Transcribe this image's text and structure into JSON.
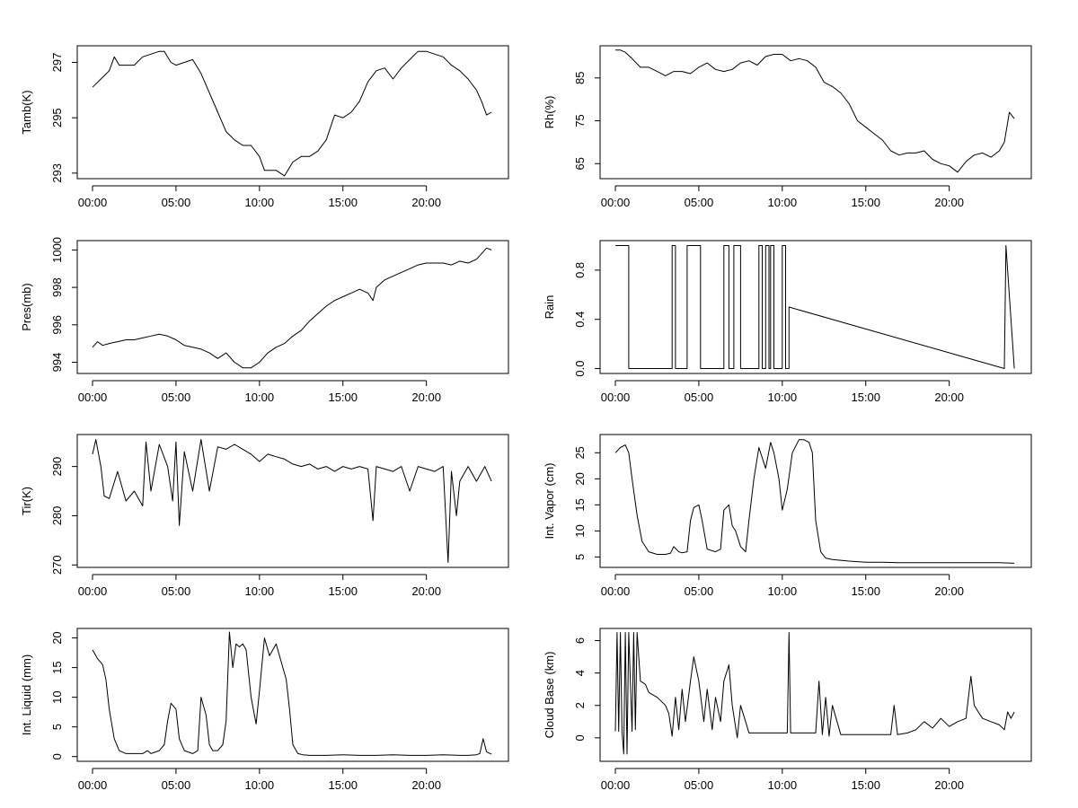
{
  "figure": {
    "x_tick_labels": [
      "00:00",
      "05:00",
      "10:00",
      "15:00",
      "20:00"
    ]
  },
  "chart_data": [
    {
      "id": "tamb",
      "type": "line",
      "ylabel": "Tamb(K)",
      "xlim": [
        0,
        24
      ],
      "ylim": [
        292.8,
        297.6
      ],
      "yticks": [
        293,
        295,
        297
      ],
      "x": [
        0.0,
        0.5,
        1.0,
        1.3,
        1.6,
        2.0,
        2.5,
        3.0,
        3.5,
        4.0,
        4.3,
        4.7,
        5.0,
        5.5,
        6.0,
        6.5,
        7.0,
        7.5,
        8.0,
        8.5,
        9.0,
        9.5,
        10.0,
        10.3,
        10.6,
        11.0,
        11.5,
        12.0,
        12.5,
        13.0,
        13.5,
        14.0,
        14.5,
        15.0,
        15.5,
        16.0,
        16.5,
        17.0,
        17.5,
        18.0,
        18.5,
        19.0,
        19.5,
        20.0,
        20.5,
        21.0,
        21.5,
        22.0,
        22.5,
        23.0,
        23.3,
        23.6,
        23.9
      ],
      "y": [
        296.1,
        296.4,
        296.7,
        297.2,
        296.9,
        296.9,
        296.9,
        297.2,
        297.3,
        297.4,
        297.4,
        297.0,
        296.9,
        297.0,
        297.1,
        296.6,
        295.9,
        295.2,
        294.5,
        294.2,
        294.0,
        294.0,
        293.6,
        293.1,
        293.1,
        293.1,
        292.9,
        293.4,
        293.6,
        293.6,
        293.8,
        294.2,
        295.1,
        295.0,
        295.2,
        295.6,
        296.3,
        296.7,
        296.8,
        296.4,
        296.8,
        297.1,
        297.4,
        297.4,
        297.3,
        297.2,
        296.9,
        296.7,
        296.4,
        296.0,
        295.6,
        295.1,
        295.2
      ]
    },
    {
      "id": "rh",
      "type": "line",
      "ylabel": "Rh(%)",
      "xlim": [
        0,
        24
      ],
      "ylim": [
        61.5,
        92.5
      ],
      "yticks": [
        65,
        75,
        85
      ],
      "x": [
        0.0,
        0.3,
        0.6,
        1.0,
        1.5,
        2.0,
        2.5,
        3.0,
        3.5,
        4.0,
        4.5,
        5.0,
        5.5,
        6.0,
        6.5,
        7.0,
        7.5,
        8.0,
        8.5,
        9.0,
        9.5,
        10.0,
        10.5,
        11.0,
        11.5,
        12.0,
        12.5,
        13.0,
        13.5,
        14.0,
        14.5,
        15.0,
        15.5,
        16.0,
        16.5,
        17.0,
        17.5,
        18.0,
        18.5,
        19.0,
        19.5,
        20.0,
        20.5,
        21.0,
        21.5,
        22.0,
        22.5,
        23.0,
        23.3,
        23.6,
        23.9
      ],
      "y": [
        91.5,
        91.5,
        91.0,
        89.5,
        87.5,
        87.5,
        86.5,
        85.5,
        86.5,
        86.5,
        86.0,
        87.5,
        88.5,
        87.0,
        86.5,
        87.0,
        88.5,
        89.0,
        88.0,
        90.0,
        90.5,
        90.5,
        89.0,
        89.5,
        89.0,
        87.5,
        84.0,
        83.0,
        81.5,
        79.0,
        75.0,
        73.5,
        72.0,
        70.5,
        68.0,
        67.0,
        67.5,
        67.5,
        68.0,
        66.0,
        65.0,
        64.5,
        63.0,
        65.5,
        67.0,
        67.5,
        66.5,
        68.0,
        70.0,
        77.0,
        75.5
      ]
    },
    {
      "id": "pres",
      "type": "line",
      "ylabel": "Pres(mb)",
      "xlim": [
        0,
        24
      ],
      "ylim": [
        993.4,
        1000.5
      ],
      "yticks": [
        994,
        996,
        998,
        1000
      ],
      "x": [
        0.0,
        0.3,
        0.6,
        1.0,
        1.5,
        2.0,
        2.5,
        3.0,
        3.5,
        4.0,
        4.5,
        5.0,
        5.5,
        6.0,
        6.5,
        7.0,
        7.5,
        8.0,
        8.5,
        9.0,
        9.5,
        10.0,
        10.5,
        11.0,
        11.5,
        12.0,
        12.5,
        13.0,
        13.5,
        14.0,
        14.5,
        15.0,
        15.5,
        16.0,
        16.5,
        16.8,
        17.0,
        17.5,
        18.0,
        18.5,
        19.0,
        19.5,
        20.0,
        20.5,
        21.0,
        21.5,
        22.0,
        22.5,
        23.0,
        23.3,
        23.6,
        23.9
      ],
      "y": [
        994.8,
        995.1,
        994.9,
        995.0,
        995.1,
        995.2,
        995.2,
        995.3,
        995.4,
        995.5,
        995.4,
        995.2,
        994.9,
        994.8,
        994.7,
        994.5,
        994.2,
        994.5,
        994.0,
        993.7,
        993.7,
        994.0,
        994.5,
        994.8,
        995.0,
        995.4,
        995.7,
        996.2,
        996.6,
        997.0,
        997.3,
        997.5,
        997.7,
        997.9,
        997.7,
        997.3,
        998.0,
        998.4,
        998.6,
        998.8,
        999.0,
        999.2,
        999.3,
        999.3,
        999.3,
        999.2,
        999.4,
        999.3,
        999.5,
        999.8,
        1000.1,
        1000.0
      ]
    },
    {
      "id": "rain",
      "type": "line",
      "ylabel": "Rain",
      "xlim": [
        0,
        24
      ],
      "ylim": [
        -0.04,
        1.04
      ],
      "yticks": [
        0.0,
        0.4,
        0.8
      ],
      "y_tick_labels": [
        "0.0",
        "0.4",
        "0.8"
      ],
      "step": true,
      "x": [
        0.0,
        0.8,
        0.8,
        3.4,
        3.4,
        3.6,
        3.6,
        4.3,
        4.3,
        5.1,
        5.1,
        6.5,
        6.5,
        6.8,
        6.8,
        7.1,
        7.1,
        7.5,
        7.5,
        8.6,
        8.6,
        8.8,
        8.8,
        9.0,
        9.0,
        9.2,
        9.2,
        9.3,
        9.3,
        9.5,
        9.5,
        10.0,
        10.0,
        10.2,
        10.2,
        10.4,
        10.4,
        23.3,
        23.3,
        23.4,
        23.4,
        23.9
      ],
      "y": [
        1,
        1,
        0,
        0,
        1,
        1,
        0,
        0,
        1,
        1,
        0,
        0,
        1,
        1,
        0,
        0,
        1,
        1,
        0,
        0,
        1,
        1,
        0,
        0,
        1,
        1,
        0,
        0,
        1,
        1,
        0,
        0,
        1,
        1,
        0,
        0,
        0.5,
        0,
        0,
        1,
        1,
        0
      ]
    },
    {
      "id": "tir",
      "type": "line",
      "ylabel": "Tir(K)",
      "xlim": [
        0,
        24
      ],
      "ylim": [
        269.5,
        296.5
      ],
      "yticks": [
        270,
        280,
        290
      ],
      "x": [
        0.0,
        0.2,
        0.5,
        0.7,
        1.0,
        1.5,
        2.0,
        2.5,
        3.0,
        3.2,
        3.5,
        4.0,
        4.5,
        4.8,
        5.0,
        5.2,
        5.5,
        6.0,
        6.5,
        7.0,
        7.5,
        8.0,
        8.5,
        9.0,
        9.5,
        10.0,
        10.5,
        11.0,
        11.5,
        12.0,
        12.5,
        13.0,
        13.5,
        14.0,
        14.5,
        15.0,
        15.5,
        16.0,
        16.5,
        16.8,
        17.0,
        17.5,
        18.0,
        18.5,
        19.0,
        19.5,
        20.0,
        20.5,
        21.0,
        21.3,
        21.5,
        21.8,
        22.0,
        22.5,
        23.0,
        23.5,
        23.9
      ],
      "y": [
        292.5,
        295.5,
        290.0,
        284.0,
        283.5,
        289.0,
        283.0,
        285.0,
        282.0,
        295.0,
        285.0,
        294.5,
        290.0,
        283.0,
        295.0,
        278.0,
        293.0,
        285.0,
        295.5,
        285.0,
        294.0,
        293.5,
        294.5,
        293.5,
        292.5,
        291.0,
        292.5,
        292.0,
        291.5,
        290.5,
        290.0,
        290.5,
        289.5,
        290.0,
        289.0,
        290.0,
        289.5,
        290.0,
        289.5,
        279.0,
        290.0,
        289.5,
        289.0,
        290.0,
        285.0,
        290.0,
        289.5,
        289.0,
        290.0,
        270.5,
        289.0,
        280.0,
        287.0,
        290.0,
        287.0,
        290.0,
        287.0
      ]
    },
    {
      "id": "vapor",
      "type": "line",
      "ylabel": "Int. Vapor (cm)",
      "xlim": [
        0,
        24
      ],
      "ylim": [
        3.0,
        28.5
      ],
      "yticks": [
        5,
        10,
        15,
        20,
        25
      ],
      "x": [
        0.0,
        0.3,
        0.6,
        0.8,
        1.0,
        1.3,
        1.6,
        2.0,
        2.5,
        3.0,
        3.3,
        3.5,
        3.8,
        4.0,
        4.3,
        4.5,
        4.7,
        5.0,
        5.2,
        5.5,
        6.0,
        6.3,
        6.5,
        6.8,
        7.0,
        7.2,
        7.5,
        7.8,
        8.0,
        8.3,
        8.6,
        9.0,
        9.3,
        9.5,
        9.8,
        10.0,
        10.3,
        10.6,
        11.0,
        11.3,
        11.6,
        11.8,
        12.0,
        12.3,
        12.6,
        13.0,
        14.0,
        15.0,
        16.0,
        17.0,
        18.0,
        19.0,
        20.0,
        21.0,
        22.0,
        23.0,
        23.9
      ],
      "y": [
        25.0,
        26.0,
        26.5,
        25.0,
        20.0,
        13.0,
        8.0,
        6.0,
        5.5,
        5.5,
        5.7,
        7.0,
        6.0,
        5.8,
        6.0,
        12.0,
        14.5,
        15.0,
        12.0,
        6.5,
        6.0,
        6.5,
        14.0,
        15.0,
        11.0,
        10.0,
        7.0,
        6.0,
        12.0,
        20.0,
        26.0,
        22.0,
        27.0,
        25.0,
        20.0,
        14.0,
        18.0,
        25.0,
        27.5,
        27.5,
        27.0,
        25.0,
        12.0,
        6.0,
        4.8,
        4.5,
        4.2,
        4.0,
        4.0,
        3.9,
        3.9,
        3.9,
        3.9,
        3.9,
        3.9,
        3.9,
        3.8
      ]
    },
    {
      "id": "liquid",
      "type": "line",
      "ylabel": "Int. Liquid (mm)",
      "xlim": [
        0,
        24
      ],
      "ylim": [
        -0.8,
        21.6
      ],
      "yticks": [
        0,
        5,
        10,
        15,
        20
      ],
      "x": [
        0.0,
        0.3,
        0.6,
        0.8,
        1.0,
        1.3,
        1.6,
        2.0,
        2.5,
        3.0,
        3.3,
        3.5,
        4.0,
        4.3,
        4.5,
        4.7,
        5.0,
        5.2,
        5.5,
        6.0,
        6.3,
        6.5,
        6.8,
        7.0,
        7.2,
        7.5,
        7.8,
        8.0,
        8.2,
        8.4,
        8.6,
        8.8,
        9.0,
        9.2,
        9.5,
        9.8,
        10.0,
        10.3,
        10.6,
        11.0,
        11.3,
        11.6,
        11.8,
        12.0,
        12.3,
        12.6,
        13.0,
        14.0,
        15.0,
        16.0,
        17.0,
        18.0,
        19.0,
        20.0,
        21.0,
        22.0,
        22.5,
        23.0,
        23.2,
        23.4,
        23.6,
        23.9
      ],
      "y": [
        18.0,
        16.5,
        15.5,
        13.0,
        8.0,
        3.0,
        1.0,
        0.5,
        0.5,
        0.5,
        1.0,
        0.5,
        1.0,
        2.0,
        6.0,
        9.0,
        8.0,
        3.0,
        1.0,
        0.5,
        1.0,
        10.0,
        7.0,
        2.0,
        1.0,
        1.0,
        2.0,
        6.0,
        21.0,
        15.0,
        19.0,
        18.5,
        19.0,
        18.0,
        10.0,
        5.5,
        11.0,
        20.0,
        17.0,
        19.0,
        16.0,
        13.0,
        8.0,
        2.0,
        0.5,
        0.3,
        0.2,
        0.2,
        0.3,
        0.2,
        0.2,
        0.3,
        0.2,
        0.2,
        0.3,
        0.2,
        0.2,
        0.3,
        0.5,
        3.0,
        0.8,
        0.4
      ]
    },
    {
      "id": "cloudbase",
      "type": "line",
      "ylabel": "Cloud Base (km)",
      "xlim": [
        0,
        24
      ],
      "ylim": [
        -1.45,
        6.75
      ],
      "yticks": [
        0,
        2,
        4,
        6
      ],
      "x": [
        0.0,
        0.1,
        0.2,
        0.3,
        0.4,
        0.5,
        0.6,
        0.7,
        0.8,
        1.0,
        1.1,
        1.2,
        1.3,
        1.5,
        1.8,
        2.0,
        2.5,
        3.0,
        3.2,
        3.4,
        3.6,
        3.8,
        4.0,
        4.2,
        4.5,
        4.7,
        5.0,
        5.3,
        5.5,
        5.8,
        6.0,
        6.3,
        6.5,
        6.8,
        7.0,
        7.3,
        7.5,
        7.8,
        8.0,
        8.5,
        9.0,
        9.5,
        10.0,
        10.3,
        10.4,
        10.5,
        11.0,
        11.5,
        12.0,
        12.2,
        12.4,
        12.6,
        12.8,
        13.0,
        13.5,
        14.0,
        14.5,
        15.0,
        15.5,
        16.0,
        16.5,
        16.7,
        16.9,
        17.5,
        18.0,
        18.5,
        19.0,
        19.5,
        20.0,
        20.5,
        21.0,
        21.3,
        21.5,
        21.8,
        22.0,
        22.5,
        23.0,
        23.3,
        23.5,
        23.7,
        23.9
      ],
      "y": [
        0.4,
        6.5,
        0.4,
        6.5,
        0.4,
        -1.0,
        6.5,
        -1.0,
        6.5,
        0.4,
        6.5,
        0.5,
        6.5,
        3.5,
        3.3,
        2.8,
        2.5,
        2.0,
        1.5,
        0.1,
        2.5,
        0.5,
        3.0,
        1.0,
        3.5,
        5.0,
        3.5,
        1.0,
        3.0,
        0.5,
        2.5,
        1.0,
        3.5,
        4.5,
        2.0,
        0.0,
        2.0,
        1.0,
        0.3,
        0.3,
        0.3,
        0.3,
        0.3,
        0.3,
        6.5,
        0.3,
        0.3,
        0.3,
        0.3,
        3.5,
        0.2,
        2.5,
        0.1,
        2.0,
        0.2,
        0.2,
        0.2,
        0.2,
        0.2,
        0.2,
        0.2,
        2.0,
        0.2,
        0.3,
        0.5,
        1.0,
        0.6,
        1.2,
        0.7,
        1.0,
        1.2,
        3.8,
        2.0,
        1.5,
        1.2,
        1.0,
        0.8,
        0.5,
        1.6,
        1.2,
        1.6
      ]
    }
  ]
}
